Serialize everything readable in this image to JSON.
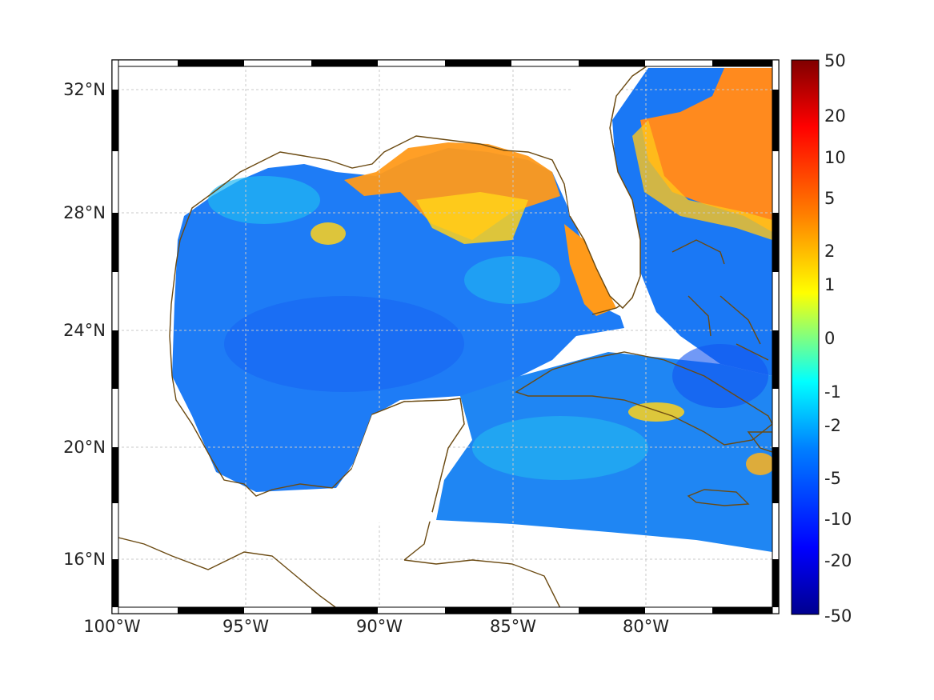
{
  "map": {
    "lon_labels": [
      "100°W",
      "95°W",
      "90°W",
      "85°W",
      "80°W"
    ],
    "lat_labels": [
      "32°N",
      "28°N",
      "24°N",
      "20°N",
      "16°N"
    ]
  },
  "colorbar": {
    "tick_labels": [
      "50",
      "20",
      "10",
      "5",
      "2",
      "1",
      "0",
      "-1",
      "-2",
      "-5",
      "-10",
      "-20",
      "-50"
    ],
    "colors": [
      "#00008f",
      "#0000ff",
      "#0080ff",
      "#00ffff",
      "#80ff80",
      "#ffff00",
      "#ff8000",
      "#ff0000",
      "#800000"
    ]
  },
  "colors": {
    "coastline": "#6b4a12",
    "land": "#ffffff",
    "grid": "#c8c8c8",
    "frame": "#000000"
  }
}
